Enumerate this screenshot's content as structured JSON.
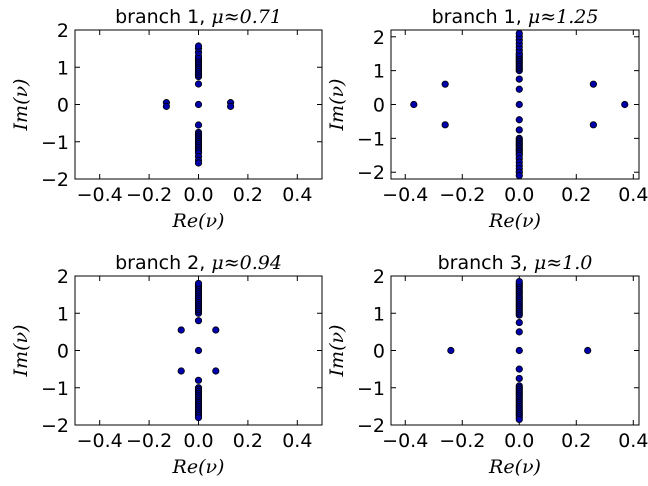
{
  "chart_data": [
    {
      "type": "scatter",
      "title": "branch 1, ",
      "title_math": "μ≈0.71",
      "xlabel": "Re(ν)",
      "ylabel": "Im(ν)",
      "xlim": [
        -0.5,
        0.5
      ],
      "ylim": [
        -2,
        2
      ],
      "xticks": [
        -0.4,
        -0.2,
        0.0,
        0.2,
        0.4
      ],
      "xtick_labels": [
        "−0.4",
        "−0.2",
        "0.0",
        "0.2",
        "0.4"
      ],
      "yticks": [
        -2,
        -1,
        0,
        1,
        2
      ],
      "ytick_labels": [
        "−2",
        "−1",
        "0",
        "1",
        "2"
      ],
      "marker_color": "#0000aa",
      "points": [
        [
          -0.13,
          0.05
        ],
        [
          -0.13,
          -0.05
        ],
        [
          0.13,
          0.05
        ],
        [
          0.13,
          -0.05
        ],
        [
          0,
          0
        ],
        [
          0,
          0.55
        ],
        [
          0,
          -0.55
        ],
        [
          0,
          0.75
        ],
        [
          0,
          0.8
        ],
        [
          0,
          0.85
        ],
        [
          0,
          0.9
        ],
        [
          0,
          0.95
        ],
        [
          0,
          1.0
        ],
        [
          0,
          1.05
        ],
        [
          0,
          1.1
        ],
        [
          0,
          1.15
        ],
        [
          0,
          1.2
        ],
        [
          0,
          1.25
        ],
        [
          0,
          1.3
        ],
        [
          0,
          1.4
        ],
        [
          0,
          1.5
        ],
        [
          0,
          1.57
        ],
        [
          0,
          -0.75
        ],
        [
          0,
          -0.8
        ],
        [
          0,
          -0.85
        ],
        [
          0,
          -0.9
        ],
        [
          0,
          -0.95
        ],
        [
          0,
          -1.0
        ],
        [
          0,
          -1.05
        ],
        [
          0,
          -1.1
        ],
        [
          0,
          -1.15
        ],
        [
          0,
          -1.2
        ],
        [
          0,
          -1.25
        ],
        [
          0,
          -1.3
        ],
        [
          0,
          -1.4
        ],
        [
          0,
          -1.5
        ],
        [
          0,
          -1.57
        ]
      ]
    },
    {
      "type": "scatter",
      "title": "branch 1, ",
      "title_math": "μ≈1.25",
      "xlabel": "Re(ν)",
      "ylabel": "Im(ν)",
      "xlim": [
        -0.45,
        0.42
      ],
      "ylim": [
        -2.2,
        2.2
      ],
      "xticks": [
        -0.4,
        -0.2,
        0.0,
        0.2,
        0.4
      ],
      "xtick_labels": [
        "−0.4",
        "−0.2",
        "0.0",
        "0.2",
        "0.4"
      ],
      "yticks": [
        -2,
        -1,
        0,
        1,
        2
      ],
      "ytick_labels": [
        "−2",
        "−1",
        "0",
        "1",
        "2"
      ],
      "marker_color": "#0000aa",
      "points": [
        [
          -0.37,
          0
        ],
        [
          0.37,
          0
        ],
        [
          -0.26,
          0.6
        ],
        [
          -0.26,
          -0.6
        ],
        [
          0.26,
          0.6
        ],
        [
          0.26,
          -0.6
        ],
        [
          0,
          0.75
        ],
        [
          0,
          -0.75
        ],
        [
          0,
          0.45
        ],
        [
          0,
          -0.45
        ],
        [
          0,
          0.0
        ],
        [
          0,
          1.0
        ],
        [
          0,
          1.05
        ],
        [
          0,
          1.1
        ],
        [
          0,
          1.15
        ],
        [
          0,
          1.2
        ],
        [
          0,
          1.25
        ],
        [
          0,
          1.3
        ],
        [
          0,
          1.35
        ],
        [
          0,
          1.4
        ],
        [
          0,
          1.45
        ],
        [
          0,
          1.5
        ],
        [
          0,
          1.6
        ],
        [
          0,
          1.7
        ],
        [
          0,
          1.8
        ],
        [
          0,
          1.9
        ],
        [
          0,
          2.0
        ],
        [
          0,
          2.1
        ],
        [
          0,
          -1.0
        ],
        [
          0,
          -1.05
        ],
        [
          0,
          -1.1
        ],
        [
          0,
          -1.15
        ],
        [
          0,
          -1.2
        ],
        [
          0,
          -1.25
        ],
        [
          0,
          -1.3
        ],
        [
          0,
          -1.35
        ],
        [
          0,
          -1.4
        ],
        [
          0,
          -1.45
        ],
        [
          0,
          -1.5
        ],
        [
          0,
          -1.6
        ],
        [
          0,
          -1.7
        ],
        [
          0,
          -1.8
        ],
        [
          0,
          -1.9
        ],
        [
          0,
          -2.0
        ],
        [
          0,
          -2.1
        ]
      ]
    },
    {
      "type": "scatter",
      "title": "branch 2, ",
      "title_math": "μ≈0.94",
      "xlabel": "Re(ν)",
      "ylabel": "Im(ν)",
      "xlim": [
        -0.5,
        0.5
      ],
      "ylim": [
        -2,
        2
      ],
      "xticks": [
        -0.4,
        -0.2,
        0.0,
        0.2,
        0.4
      ],
      "xtick_labels": [
        "−0.4",
        "−0.2",
        "0.0",
        "0.2",
        "0.4"
      ],
      "yticks": [
        -2,
        -1,
        0,
        1,
        2
      ],
      "ytick_labels": [
        "−2",
        "−1",
        "0",
        "1",
        "2"
      ],
      "marker_color": "#0000aa",
      "points": [
        [
          -0.07,
          0.55
        ],
        [
          0.07,
          0.55
        ],
        [
          -0.07,
          -0.55
        ],
        [
          0.07,
          -0.55
        ],
        [
          0,
          0.0
        ],
        [
          0,
          0.8
        ],
        [
          0,
          -0.8
        ],
        [
          0,
          1.0
        ],
        [
          0,
          1.05
        ],
        [
          0,
          1.1
        ],
        [
          0,
          1.15
        ],
        [
          0,
          1.2
        ],
        [
          0,
          1.25
        ],
        [
          0,
          1.3
        ],
        [
          0,
          1.35
        ],
        [
          0,
          1.4
        ],
        [
          0,
          1.45
        ],
        [
          0,
          1.5
        ],
        [
          0,
          1.55
        ],
        [
          0,
          1.6
        ],
        [
          0,
          1.65
        ],
        [
          0,
          1.7
        ],
        [
          0,
          1.75
        ],
        [
          0,
          1.8
        ],
        [
          0,
          -1.0
        ],
        [
          0,
          -1.05
        ],
        [
          0,
          -1.1
        ],
        [
          0,
          -1.15
        ],
        [
          0,
          -1.2
        ],
        [
          0,
          -1.25
        ],
        [
          0,
          -1.3
        ],
        [
          0,
          -1.35
        ],
        [
          0,
          -1.4
        ],
        [
          0,
          -1.45
        ],
        [
          0,
          -1.5
        ],
        [
          0,
          -1.55
        ],
        [
          0,
          -1.6
        ],
        [
          0,
          -1.65
        ],
        [
          0,
          -1.7
        ],
        [
          0,
          -1.75
        ],
        [
          0,
          -1.8
        ]
      ]
    },
    {
      "type": "scatter",
      "title": "branch 3, ",
      "title_math": "μ≈1.0",
      "xlabel": "Re(ν)",
      "ylabel": "Im(ν)",
      "xlim": [
        -0.45,
        0.42
      ],
      "ylim": [
        -2,
        2
      ],
      "xticks": [
        -0.4,
        -0.2,
        0.0,
        0.2,
        0.4
      ],
      "xtick_labels": [
        "−0.4",
        "−0.2",
        "0.0",
        "0.2",
        "0.4"
      ],
      "yticks": [
        -2,
        -1,
        0,
        1,
        2
      ],
      "ytick_labels": [
        "−2",
        "−1",
        "0",
        "1",
        "2"
      ],
      "marker_color": "#0000aa",
      "points": [
        [
          -0.24,
          0
        ],
        [
          0.24,
          0
        ],
        [
          0,
          0
        ],
        [
          0,
          0.5
        ],
        [
          0,
          -0.5
        ],
        [
          0,
          0.75
        ],
        [
          0,
          -0.75
        ],
        [
          0,
          0.95
        ],
        [
          0,
          1.0
        ],
        [
          0,
          1.05
        ],
        [
          0,
          1.1
        ],
        [
          0,
          1.15
        ],
        [
          0,
          1.2
        ],
        [
          0,
          1.25
        ],
        [
          0,
          1.3
        ],
        [
          0,
          1.35
        ],
        [
          0,
          1.4
        ],
        [
          0,
          1.45
        ],
        [
          0,
          1.5
        ],
        [
          0,
          1.55
        ],
        [
          0,
          1.6
        ],
        [
          0,
          1.65
        ],
        [
          0,
          1.7
        ],
        [
          0,
          1.75
        ],
        [
          0,
          1.8
        ],
        [
          0,
          1.85
        ],
        [
          0,
          -0.95
        ],
        [
          0,
          -1.0
        ],
        [
          0,
          -1.05
        ],
        [
          0,
          -1.1
        ],
        [
          0,
          -1.15
        ],
        [
          0,
          -1.2
        ],
        [
          0,
          -1.25
        ],
        [
          0,
          -1.3
        ],
        [
          0,
          -1.35
        ],
        [
          0,
          -1.4
        ],
        [
          0,
          -1.45
        ],
        [
          0,
          -1.5
        ],
        [
          0,
          -1.55
        ],
        [
          0,
          -1.6
        ],
        [
          0,
          -1.65
        ],
        [
          0,
          -1.7
        ],
        [
          0,
          -1.75
        ],
        [
          0,
          -1.8
        ],
        [
          0,
          -1.85
        ]
      ]
    }
  ]
}
